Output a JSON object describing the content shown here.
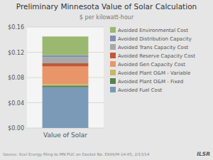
{
  "chart_data": {
    "type": "bar",
    "stacked": true,
    "title": "Preliminary Minnesota Value of Solar Calculation",
    "subtitle": "$ per kilowatt-hour",
    "source": "Source: Xcel Energy filing to MN PUC on Docket No. E999/M-14-65, 2/13/14",
    "annotations": [
      "ILSR"
    ],
    "categories": [
      "Value of Solar"
    ],
    "series": [
      {
        "name": "Avoided Fuel Cost",
        "color": "#7b9ab8",
        "values": [
          0.0645
        ]
      },
      {
        "name": "Avoided Plant O&M - Fixed",
        "color": "#5a8050",
        "values": [
          0.0028
        ]
      },
      {
        "name": "Avoided Plant O&M - Variable",
        "color": "#c8b864",
        "values": [
          0.0022
        ]
      },
      {
        "name": "Avoided Gen Capacity Cost",
        "color": "#e8956a",
        "values": [
          0.028
        ]
      },
      {
        "name": "Avoided Reserve Capacity Cost",
        "color": "#c05838",
        "values": [
          0.005
        ]
      },
      {
        "name": "Avoided Trans Capacity Cost",
        "color": "#a8a8a8",
        "values": [
          0.01
        ]
      },
      {
        "name": "Avoided Distribution Capacity",
        "color": "#8090b0",
        "values": [
          0.003
        ]
      },
      {
        "name": "Avoided Environmental Cost",
        "color": "#9ab870",
        "values": [
          0.0295
        ]
      }
    ],
    "ylim": [
      0,
      0.16
    ],
    "yticks": [
      {
        "value": 0.0,
        "label": "$0.00"
      },
      {
        "value": 0.04,
        "label": "$0.04"
      },
      {
        "value": 0.08,
        "label": "$0.08"
      },
      {
        "value": 0.12,
        "label": "$0.12"
      },
      {
        "value": 0.16,
        "label": "$0.16"
      }
    ],
    "grid": true,
    "legend": "right"
  }
}
